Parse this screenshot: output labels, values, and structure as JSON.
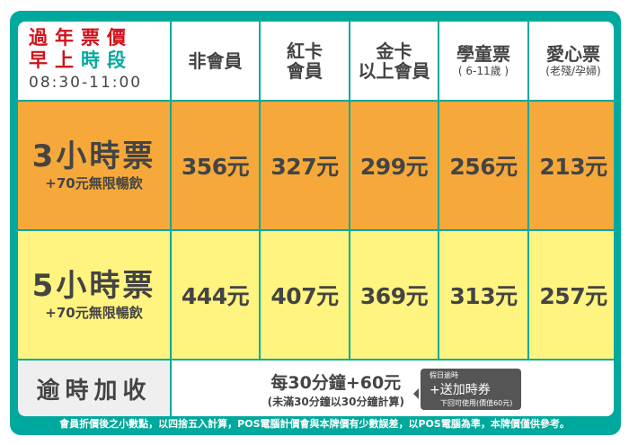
{
  "header": {
    "corner": {
      "line1": "過年票價",
      "line2a": "早上",
      "line2b": "時段",
      "time": "08:30-11:00"
    },
    "columns": [
      {
        "line1": "非會員",
        "line2": ""
      },
      {
        "line1": "紅卡",
        "line2": "會員"
      },
      {
        "line1": "金卡",
        "line2": "以上會員"
      },
      {
        "line1": "學童票",
        "line2": "( 6-11歲 )"
      },
      {
        "line1": "愛心票",
        "line2": "(老殘/孕婦)"
      }
    ]
  },
  "rows": [
    {
      "title": "3小時票",
      "sub": "+70元無限暢飲",
      "prices": [
        "356元",
        "327元",
        "299元",
        "256元",
        "213元"
      ]
    },
    {
      "title": "5小時票",
      "sub": "+70元無限暢飲",
      "prices": [
        "444元",
        "407元",
        "369元",
        "313元",
        "257元"
      ]
    }
  ],
  "overtime": {
    "label": "逾時加收",
    "main": "每30分鐘+60元",
    "note": "(未滿30分鐘以30分鐘計算)",
    "badge": {
      "top": "假日逾時",
      "main": "+送加時券",
      "bottom": "下回可使用(價值60元)"
    }
  },
  "footer": "會員折價後之小數點，以四捨五入計算，POS電腦計價會與本牌價有少數誤差，以POS電腦為準，本牌價僅供參考。",
  "colors": {
    "teal": "#00a99d",
    "orange": "#f6a93a",
    "yellow": "#fff47f",
    "red": "#d0121b"
  }
}
